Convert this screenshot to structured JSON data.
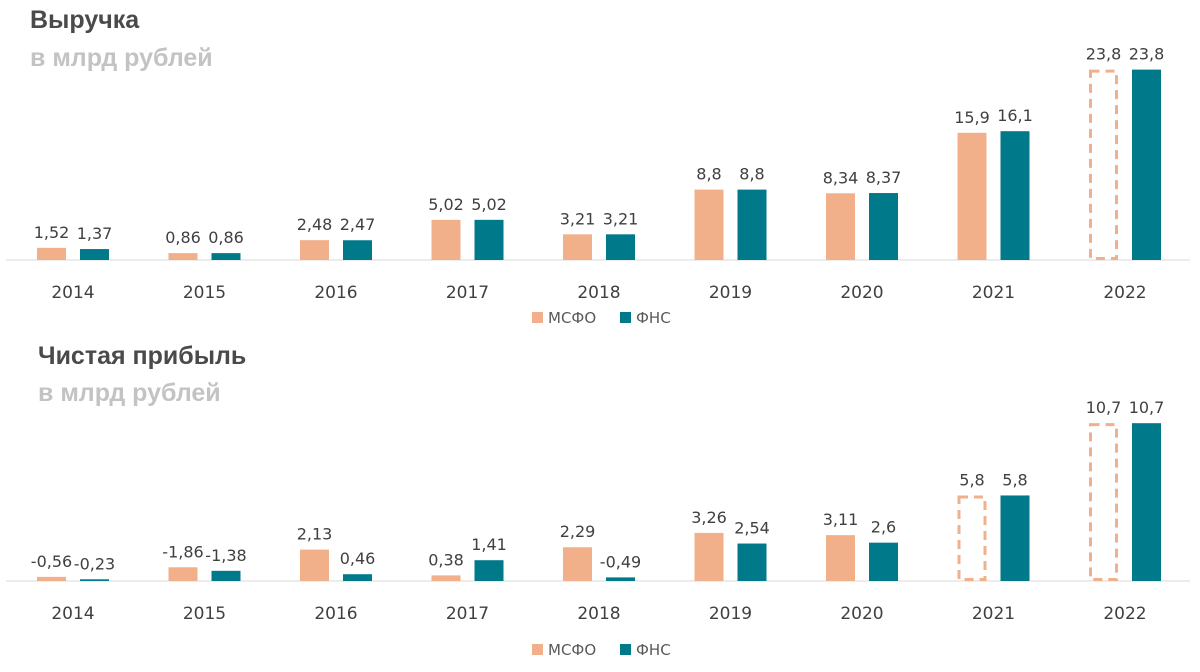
{
  "colors": {
    "msfo": "#f2b08a",
    "fns": "#007a8a",
    "axis": "#d9d9d9",
    "text": "#404040"
  },
  "chart_data": [
    {
      "type": "bar",
      "title": "Выручка",
      "subtitle": "в млрд рублей",
      "categories": [
        "2014",
        "2015",
        "2016",
        "2017",
        "2018",
        "2019",
        "2020",
        "2021",
        "2022"
      ],
      "series": [
        {
          "name": "МСФО",
          "values": [
            1.52,
            0.86,
            2.48,
            5.02,
            3.21,
            8.8,
            8.34,
            15.9,
            23.8
          ],
          "labels": [
            "1,52",
            "0,86",
            "2,48",
            "5,02",
            "3,21",
            "8,8",
            "8,34",
            "15,9",
            "23,8"
          ],
          "estimated": [
            false,
            false,
            false,
            false,
            false,
            false,
            false,
            false,
            true
          ]
        },
        {
          "name": "ФНС",
          "values": [
            1.37,
            0.86,
            2.47,
            5.02,
            3.21,
            8.8,
            8.37,
            16.1,
            23.8
          ],
          "labels": [
            "1,37",
            "0,86",
            "2,47",
            "5,02",
            "3,21",
            "8,8",
            "8,37",
            "16,1",
            "23,8"
          ],
          "estimated": [
            false,
            false,
            false,
            false,
            false,
            false,
            false,
            false,
            false
          ]
        }
      ],
      "legend": [
        "МСФО",
        "ФНС"
      ],
      "legend_position": "bottom",
      "grid": false
    },
    {
      "type": "bar",
      "title": "Чистая прибыль",
      "subtitle": "в млрд рублей",
      "categories": [
        "2014",
        "2015",
        "2016",
        "2017",
        "2018",
        "2019",
        "2020",
        "2021",
        "2022"
      ],
      "series": [
        {
          "name": "МСФО",
          "values": [
            -0.56,
            -1.86,
            2.13,
            0.38,
            2.29,
            3.26,
            3.11,
            5.8,
            10.7
          ],
          "labels": [
            "-0,56",
            "-1,86",
            "2,13",
            "0,38",
            "2,29",
            "3,26",
            "3,11",
            "5,8",
            "10,7"
          ],
          "estimated": [
            false,
            false,
            false,
            false,
            false,
            false,
            false,
            true,
            true
          ]
        },
        {
          "name": "ФНС",
          "values": [
            -0.23,
            -1.38,
            0.46,
            1.41,
            -0.49,
            2.54,
            2.6,
            5.8,
            10.7
          ],
          "labels": [
            "-0,23",
            "-1,38",
            "0,46",
            "1,41",
            "-0,49",
            "2,54",
            "2,6",
            "5,8",
            "10,7"
          ],
          "estimated": [
            false,
            false,
            false,
            false,
            false,
            false,
            false,
            false,
            false
          ]
        }
      ],
      "legend": [
        "МСФО",
        "ФНС"
      ],
      "legend_position": "bottom",
      "grid": false
    }
  ]
}
